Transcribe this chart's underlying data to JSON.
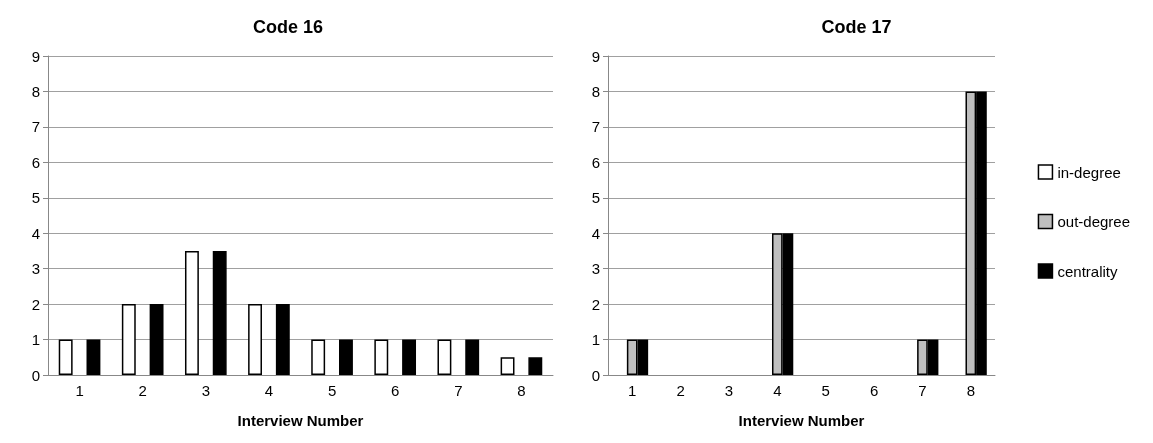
{
  "chart_data": [
    {
      "type": "bar",
      "title": "Code 16",
      "xlabel": "Interview Number",
      "categories": [
        "1",
        "2",
        "3",
        "4",
        "5",
        "6",
        "7",
        "8"
      ],
      "series": [
        {
          "color": "#ffffff",
          "values": [
            1,
            2,
            3.5,
            2,
            1,
            1,
            1,
            0.5
          ]
        },
        {
          "color": "#bfbfbf",
          "values": [
            null,
            null,
            null,
            null,
            null,
            null,
            null,
            null
          ]
        },
        {
          "color": "#000000",
          "values": [
            1,
            2,
            3.5,
            2,
            1,
            1,
            1,
            0.5
          ]
        }
      ],
      "ylim": [
        0,
        9
      ],
      "yticks": [
        0,
        1,
        2,
        3,
        4,
        5,
        6,
        7,
        8,
        9
      ],
      "grid": "y",
      "legend": false
    },
    {
      "type": "bar",
      "title": "Code 17",
      "xlabel": "Interview Number",
      "categories": [
        "1",
        "2",
        "3",
        "4",
        "5",
        "6",
        "7",
        "8"
      ],
      "series": [
        {
          "name": "in-degree",
          "color": "#ffffff",
          "values": [
            null,
            null,
            null,
            null,
            null,
            null,
            null,
            null
          ]
        },
        {
          "name": "out-degree",
          "color": "#bfbfbf",
          "values": [
            1,
            null,
            null,
            4,
            null,
            null,
            1,
            8
          ]
        },
        {
          "name": "centrality",
          "color": "#000000",
          "values": [
            1,
            null,
            null,
            4,
            null,
            null,
            1,
            8
          ]
        }
      ],
      "ylim": [
        0,
        9
      ],
      "yticks": [
        0,
        1,
        2,
        3,
        4,
        5,
        6,
        7,
        8,
        9
      ],
      "grid": "y",
      "legend": "right"
    }
  ]
}
